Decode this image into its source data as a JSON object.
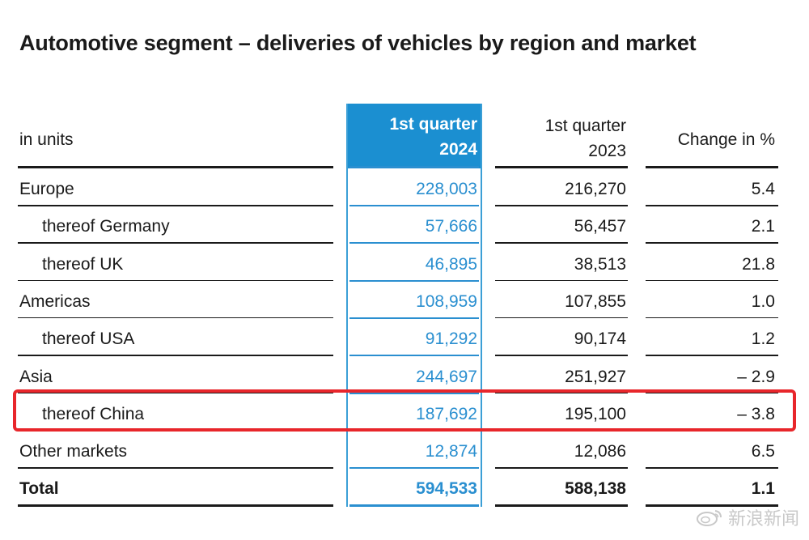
{
  "title": "Automotive segment – deliveries of vehicles by region and market",
  "header": {
    "unit": "in units",
    "col1": "1st quarter\n2024",
    "col1_line1": "1st quarter",
    "col1_line2": "2024",
    "col2_line1": "1st quarter",
    "col2_line2": "2023",
    "col3": "Change in %"
  },
  "rows": [
    {
      "label": "Europe",
      "q1_2024": "228,003",
      "q1_2023": "216,270",
      "change": "5.4"
    },
    {
      "label": "thereof Germany",
      "q1_2024": "57,666",
      "q1_2023": "56,457",
      "change": "2.1"
    },
    {
      "label": "thereof UK",
      "q1_2024": "46,895",
      "q1_2023": "38,513",
      "change": "21.8"
    },
    {
      "label": "Americas",
      "q1_2024": "108,959",
      "q1_2023": "107,855",
      "change": "1.0"
    },
    {
      "label": "thereof USA",
      "q1_2024": "91,292",
      "q1_2023": "90,174",
      "change": "1.2"
    },
    {
      "label": "Asia",
      "q1_2024": "244,697",
      "q1_2023": "251,927",
      "change": "– 2.9"
    },
    {
      "label": "thereof China",
      "q1_2024": "187,692",
      "q1_2023": "195,100",
      "change": "– 3.8"
    },
    {
      "label": "Other markets",
      "q1_2024": "12,874",
      "q1_2023": "12,086",
      "change": "6.5"
    },
    {
      "label": "Total",
      "q1_2024": "594,533",
      "q1_2023": "588,138",
      "change": "1.1"
    }
  ],
  "colors": {
    "highlight_column": "#1b8fd1",
    "highlight_text": "#2a8fd0",
    "annotation_box": "#e8262b"
  },
  "watermark": {
    "icon": "weibo-logo-icon",
    "text": "新浪新闻"
  }
}
